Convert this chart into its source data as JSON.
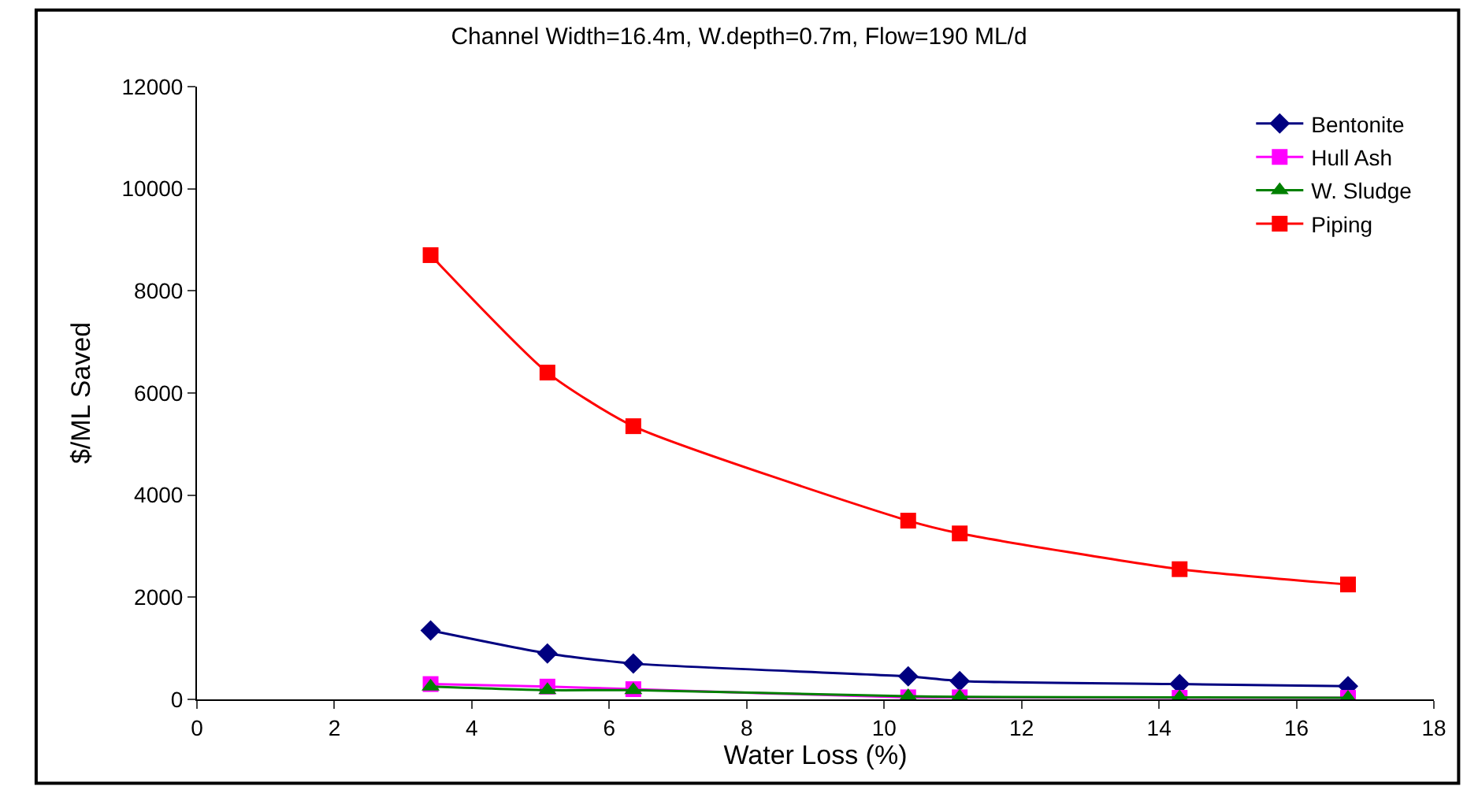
{
  "chart_data": {
    "type": "line",
    "title": "Channel Width=16.4m, W.depth=0.7m, Flow=190 ML/d",
    "xlabel": "Water Loss (%)",
    "ylabel": "$/ML Saved",
    "x": [
      3.4,
      5.1,
      6.35,
      10.35,
      11.1,
      14.3,
      16.75
    ],
    "series": [
      {
        "name": "Bentonite",
        "color": "#000080",
        "marker": "diamond",
        "values": [
          1350,
          900,
          700,
          450,
          360,
          300,
          260
        ]
      },
      {
        "name": "Hull Ash",
        "color": "#ff00ff",
        "marker": "square",
        "values": [
          300,
          250,
          200,
          40,
          40,
          30,
          30
        ]
      },
      {
        "name": "W. Sludge",
        "color": "#008000",
        "marker": "triangle",
        "values": [
          250,
          180,
          180,
          60,
          50,
          40,
          30
        ]
      },
      {
        "name": "Piping",
        "color": "#ff0000",
        "marker": "square",
        "values": [
          8700,
          6400,
          5350,
          3500,
          3250,
          2550,
          2250
        ]
      }
    ],
    "xlim": [
      0,
      18
    ],
    "xticks": [
      0,
      2,
      4,
      6,
      8,
      10,
      12,
      14,
      16,
      18
    ],
    "ylim": [
      0,
      12000
    ],
    "yticks": [
      0,
      2000,
      4000,
      6000,
      8000,
      10000,
      12000
    ],
    "legend": "top right"
  }
}
